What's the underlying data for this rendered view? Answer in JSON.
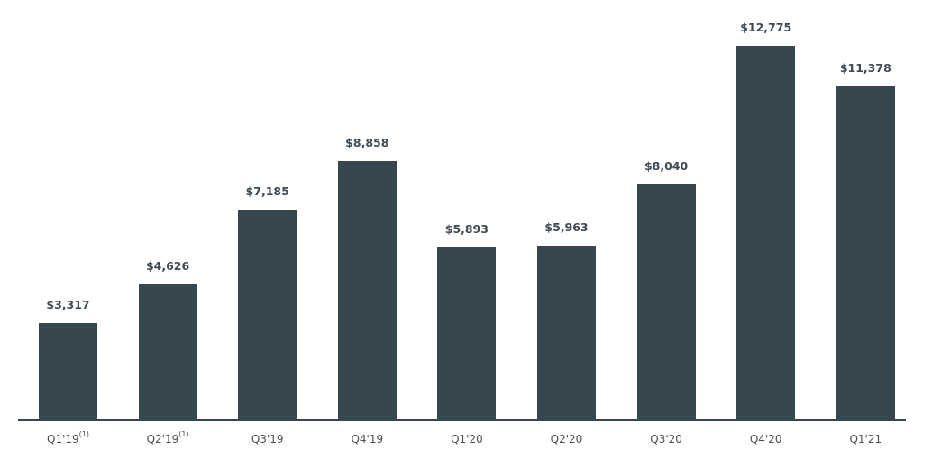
{
  "chart_data": {
    "type": "bar",
    "title": "",
    "xlabel": "",
    "ylabel": "",
    "categories": [
      "Q1'19",
      "Q2'19",
      "Q3'19",
      "Q4'19",
      "Q1'20",
      "Q2'20",
      "Q3'20",
      "Q4'20",
      "Q1'21"
    ],
    "category_footnotes": [
      "(1)",
      "(1)",
      "",
      "",
      "",
      "",
      "",
      "",
      ""
    ],
    "values": [
      3317,
      4626,
      7185,
      8858,
      5893,
      5963,
      8040,
      12775,
      11378
    ],
    "data_labels": [
      "$3,317",
      "$4,626",
      "$7,185",
      "$8,858",
      "$5,893",
      "$5,963",
      "$8,040",
      "$12,775",
      "$11,378"
    ],
    "ylim": [
      0,
      14000
    ],
    "grid": false,
    "legend": null,
    "bar_color": "#36474f"
  }
}
